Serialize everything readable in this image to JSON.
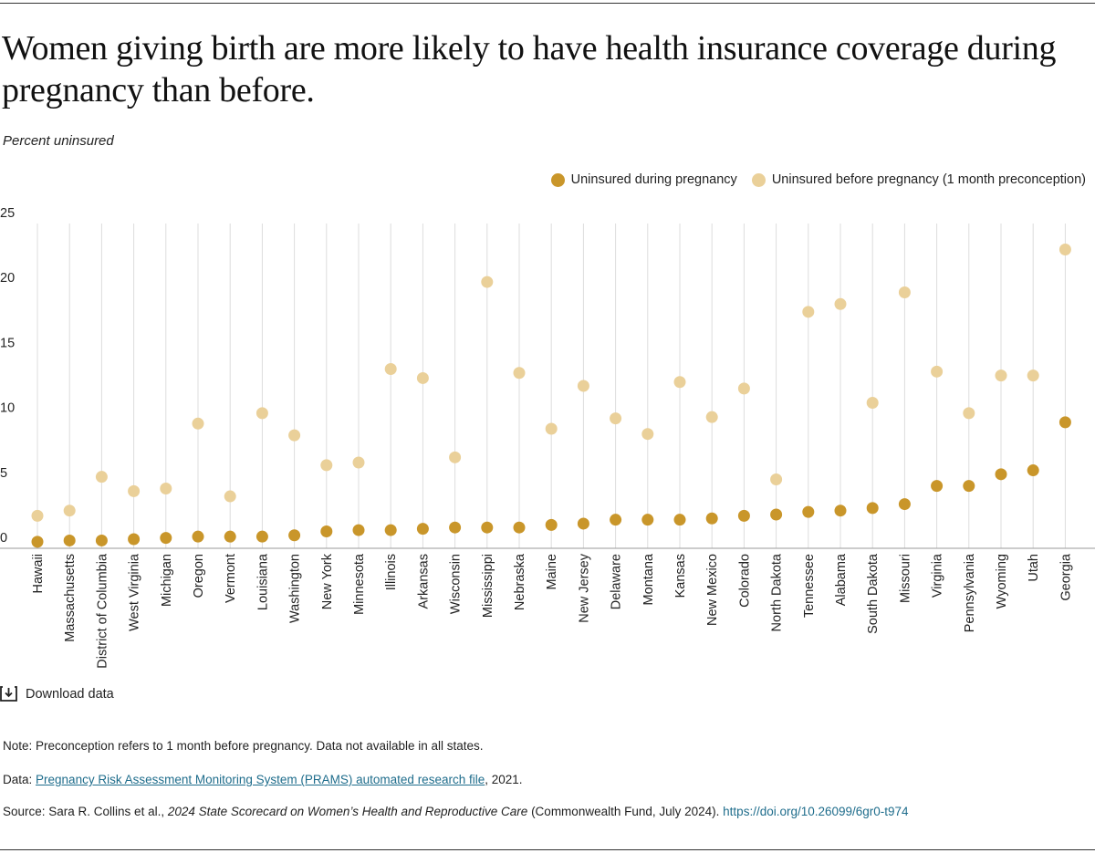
{
  "title": "Women giving birth are more likely to have health insurance coverage during pregnancy than before.",
  "subtitle": "Percent uninsured",
  "colors": {
    "during": "#c9962a",
    "before": "#ead099",
    "grid": "#dddddd",
    "link": "#1f6d8c"
  },
  "download": {
    "label": "Download data",
    "icon": "download-icon"
  },
  "notes": {
    "note": "Note: Preconception refers to 1 month before pregnancy. Data not available in all states.",
    "data_prefix": "Data: ",
    "data_link": "Pregnancy Risk Assessment Monitoring System (PRAMS) automated research file",
    "data_suffix": ", 2021.",
    "source_prefix": "Source: Sara R. Collins et al., ",
    "source_italic": "2024 State Scorecard on Women’s Health and Reproductive Care",
    "source_mid": " (Commonwealth Fund, July 2024). ",
    "source_link": "https://doi.org/10.26099/6gr0-t974"
  },
  "chart_data": {
    "type": "scatter",
    "ylim": [
      0,
      25
    ],
    "yticks": [
      0,
      5,
      10,
      15,
      20,
      25
    ],
    "categories": [
      "Hawaii",
      "Massachusetts",
      "District of Columbia",
      "West Virginia",
      "Michigan",
      "Oregon",
      "Vermont",
      "Louisiana",
      "Washington",
      "New York",
      "Minnesota",
      "Illinois",
      "Arkansas",
      "Wisconsin",
      "Mississippi",
      "Nebraska",
      "Maine",
      "New Jersey",
      "Delaware",
      "Montana",
      "Kansas",
      "New Mexico",
      "Colorado",
      "North Dakota",
      "Tennessee",
      "Alabama",
      "South Dakota",
      "Missouri",
      "Virginia",
      "Pennsylvania",
      "Wyoming",
      "Utah",
      "Georgia"
    ],
    "series": [
      {
        "name": "Uninsured during pregnancy",
        "values": [
          0.5,
          0.6,
          0.6,
          0.7,
          0.8,
          0.9,
          0.9,
          0.9,
          1.0,
          1.3,
          1.4,
          1.4,
          1.5,
          1.6,
          1.6,
          1.6,
          1.8,
          1.9,
          2.2,
          2.2,
          2.2,
          2.3,
          2.5,
          2.6,
          2.8,
          2.9,
          3.1,
          3.4,
          4.8,
          4.8,
          5.7,
          6.0,
          9.7
        ]
      },
      {
        "name": "Uninsured before pregnancy (1 month preconception)",
        "values": [
          2.5,
          2.9,
          5.5,
          4.4,
          4.6,
          9.6,
          4.0,
          10.4,
          8.7,
          6.4,
          6.6,
          13.8,
          13.1,
          7.0,
          20.5,
          13.5,
          9.2,
          12.5,
          10.0,
          8.8,
          12.8,
          10.1,
          12.3,
          5.3,
          18.2,
          18.8,
          11.2,
          19.7,
          13.6,
          10.4,
          13.3,
          13.3,
          23.0
        ]
      }
    ],
    "xlabel": "",
    "ylabel": "Percent uninsured"
  }
}
